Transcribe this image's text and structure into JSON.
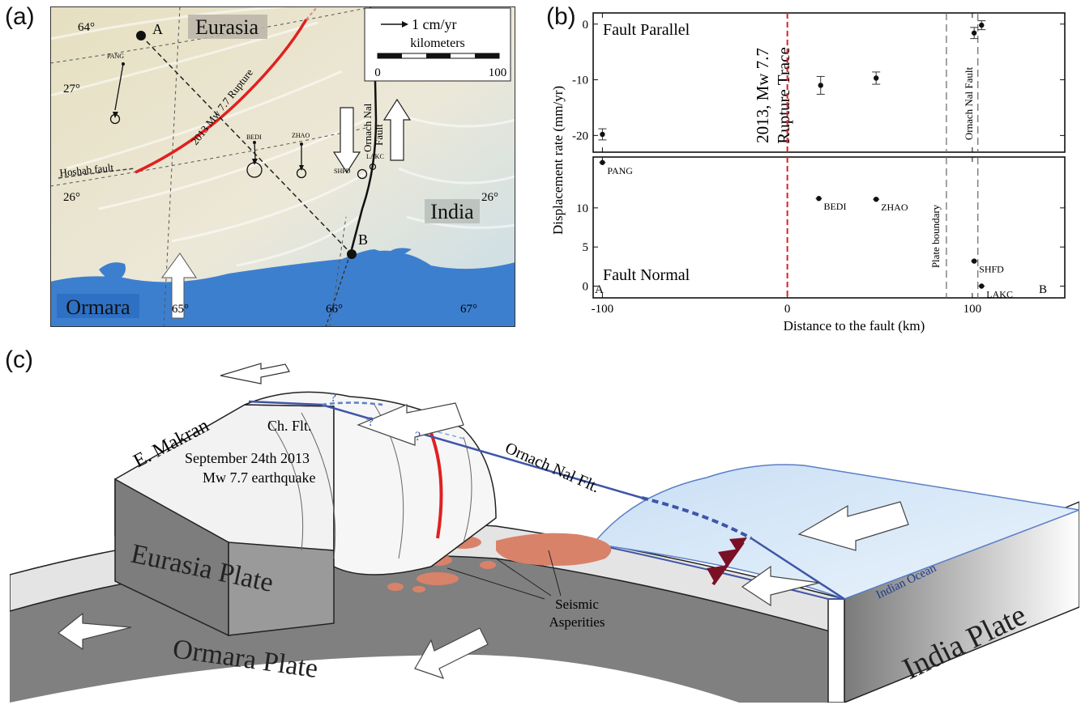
{
  "panels": {
    "a": "(a)",
    "b": "(b)",
    "c": "(c)"
  },
  "map": {
    "regions": {
      "eurasia": "Eurasia",
      "india": "India",
      "ormara": "Ormara"
    },
    "lat_labels": [
      "27°",
      "26°",
      "26°"
    ],
    "lon_labels": [
      "64°",
      "65°",
      "66°",
      "67°"
    ],
    "profile": {
      "start": "A",
      "end": "B"
    },
    "faults": {
      "hoshab": "Hoshab fault",
      "rupture": "2013 Mw 7.7 Rupture",
      "ornach_line1": "Ornach Nal",
      "ornach_line2": "Fault"
    },
    "stations": [
      "PANG",
      "BEDI",
      "ZHAO",
      "SHFD",
      "LAKC"
    ],
    "legend": {
      "velocity": "1 cm/yr",
      "distance_title": "kilometers",
      "scale_min": "0",
      "scale_max": "100"
    },
    "colors": {
      "rupture": "#e02020",
      "sea": "#3d7fcf",
      "land": "#e8e2c8"
    }
  },
  "chart_data": {
    "type": "scatter",
    "xlabel": "Distance to the fault (km)",
    "ylabel": "Displacement rate (mm/yr)",
    "xlim": [
      -105,
      150
    ],
    "xticks": [
      -100,
      0,
      100
    ],
    "subplots": [
      {
        "name": "Fault Parallel",
        "ylim": [
          -23,
          2
        ],
        "yticks": [
          0,
          -10,
          -20
        ],
        "points": [
          {
            "x": -100,
            "y": -19.8,
            "err": 1.0
          },
          {
            "x": 18,
            "y": -11,
            "err": 1.6
          },
          {
            "x": 48,
            "y": -9.7,
            "err": 1.1
          },
          {
            "x": 101,
            "y": -1.6,
            "err": 1.0
          },
          {
            "x": 105,
            "y": -0.2,
            "err": 0.8
          }
        ]
      },
      {
        "name": "Fault Normal",
        "ylim": [
          -1.5,
          16.5
        ],
        "yticks": [
          10,
          5,
          0
        ],
        "points": [
          {
            "x": -100,
            "y": 15.8,
            "label": "PANG"
          },
          {
            "x": 17,
            "y": 11.2,
            "label": "BEDI"
          },
          {
            "x": 48,
            "y": 11.1,
            "label": "ZHAO"
          },
          {
            "x": 101,
            "y": 3.2,
            "label": "SHFD"
          },
          {
            "x": 105,
            "y": 0.0,
            "label": "LAKC"
          }
        ]
      }
    ],
    "vlines": [
      {
        "x": 0,
        "label_line1": "2013, Mw 7.7",
        "label_line2": "Rupture Trace",
        "color": "#e02020"
      },
      {
        "x": 86,
        "label": "Plate boundary",
        "color": "#666666"
      },
      {
        "x": 103,
        "label": "Ornach Nal Fault",
        "color": "#666666"
      }
    ],
    "corner_labels": {
      "left": "A",
      "right": "B"
    }
  },
  "block_diagram": {
    "labels": {
      "e_makran": "E. Makran",
      "ch_flt": "Ch. Flt.",
      "eq_line1": "September 24th 2013",
      "eq_line2": "Mw 7.7 earthquake",
      "ornach": "Ornach Nal Flt.",
      "eurasia_plate": "Eurasia Plate",
      "ormara_plate": "Ormara Plate",
      "india_plate": "India Plate",
      "indian_ocean": "Indian Ocean",
      "asperities_line1": "Seismic",
      "asperities_line2": "Asperities",
      "question": "?"
    }
  }
}
